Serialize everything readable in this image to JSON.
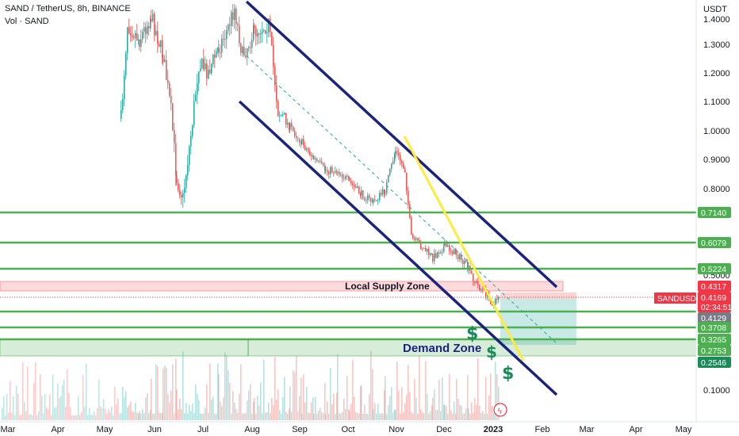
{
  "header": {
    "title": "SAND / TetherUS, 8h, BINANCE",
    "volume_label": "Vol · SAND",
    "currency": "USDT"
  },
  "chart_data": {
    "type": "candlestick",
    "symbol": "SANDUSDT",
    "y_axis": {
      "ticks": [
        "1.4000",
        "1.3000",
        "1.2000",
        "1.1000",
        "1.0000",
        "0.9000",
        "0.8000",
        "0.5000",
        "0.1000"
      ],
      "tick_values": [
        1.4,
        1.3,
        1.2,
        1.1,
        1.0,
        0.9,
        0.8,
        0.5,
        0.1
      ]
    },
    "x_axis": {
      "labels": [
        "Mar",
        "Apr",
        "May",
        "Jun",
        "Jul",
        "Aug",
        "Sep",
        "Oct",
        "Nov",
        "Dec",
        "2023",
        "Feb",
        "Mar",
        "Apr",
        "May"
      ]
    },
    "horizontal_levels": [
      {
        "label": "0.7140",
        "value": 0.714,
        "color": "#4caf50"
      },
      {
        "label": "0.6079",
        "value": 0.6079,
        "color": "#4caf50"
      },
      {
        "label": "0.5224",
        "value": 0.5224,
        "color": "#4caf50"
      },
      {
        "label": "0.4317",
        "value": 0.4317,
        "color": "#f23645"
      },
      {
        "label": "0.4129",
        "value": 0.4129,
        "color": "#787b86"
      },
      {
        "label": "0.3708",
        "value": 0.3708,
        "color": "#4caf50"
      },
      {
        "label": "0.3265",
        "value": 0.3265,
        "color": "#4caf50"
      },
      {
        "label": "0.2753",
        "value": 0.2753,
        "color": "#4caf50"
      },
      {
        "label": "0.2546",
        "value": 0.2546,
        "color": "#1b8a5a"
      }
    ],
    "last_price": {
      "label": "0.4169",
      "value": 0.4169,
      "countdown": "02:34:51",
      "symbol_tag": "SANDUSDT"
    },
    "zones": [
      {
        "name": "Local Supply Zone",
        "low": 0.4169,
        "high": 0.4317,
        "color": "#f23645"
      },
      {
        "name": "Demand Zone",
        "low": 0.2546,
        "high": 0.3265,
        "color": "#4caf50"
      }
    ],
    "annotations": [
      "Local Supply Zone",
      "Demand Zone",
      "$",
      "$",
      "$"
    ],
    "colors": {
      "up": "#26a69a",
      "down": "#ef5350",
      "channel": "#1a237e",
      "trendline": "#ffeb3b",
      "levels": "#4caf50"
    }
  }
}
